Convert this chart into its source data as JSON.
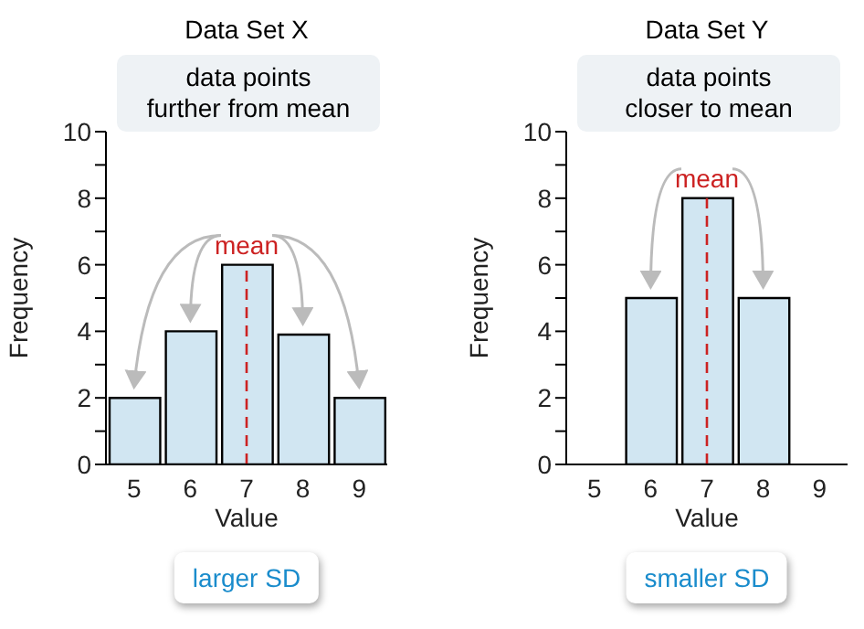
{
  "chart_data": [
    {
      "type": "histogram",
      "title": "Data Set X",
      "xlabel": "Value",
      "ylabel": "Frequency",
      "bins": [
        4.5,
        5.5,
        6.5,
        7.5,
        8.5,
        9.5
      ],
      "values": [
        2,
        4,
        6,
        3.9,
        2
      ],
      "color": "#d1e6f2",
      "xlim": [
        4.5,
        9.5
      ],
      "xticks": [
        5,
        6,
        7,
        8,
        9
      ],
      "ylim": [
        0,
        10
      ],
      "yticks": [
        0,
        {
          "value": 1,
          "label": null
        },
        2,
        {
          "value": 3,
          "label": null
        },
        4,
        {
          "value": 5,
          "label": null
        },
        6,
        {
          "value": 7,
          "label": null
        },
        8,
        {
          "value": 9,
          "label": null
        },
        10
      ],
      "grid": false,
      "legend": false,
      "ref_lines": [
        {
          "axis": "x",
          "value": 7,
          "label": "mean",
          "color": "#cc2222",
          "line_style": "dashed"
        }
      ],
      "annotations": [
        "data points\nfurther from mean",
        "larger SD"
      ]
    },
    {
      "type": "histogram",
      "title": "Data Set Y",
      "xlabel": "Value",
      "ylabel": "Frequency",
      "bins": [
        4.5,
        5.5,
        6.5,
        7.5,
        8.5,
        9.5
      ],
      "values": [
        0,
        5,
        8,
        5,
        0
      ],
      "color": "#d1e6f2",
      "xlim": [
        4.5,
        9.5
      ],
      "xticks": [
        5,
        6,
        7,
        8,
        9
      ],
      "ylim": [
        0,
        10
      ],
      "yticks": [
        0,
        {
          "value": 1,
          "label": null
        },
        2,
        {
          "value": 3,
          "label": null
        },
        4,
        {
          "value": 5,
          "label": null
        },
        6,
        {
          "value": 7,
          "label": null
        },
        8,
        {
          "value": 9,
          "label": null
        },
        10
      ],
      "grid": false,
      "legend": false,
      "ref_lines": [
        {
          "axis": "x",
          "value": 7,
          "label": "mean",
          "color": "#cc2222",
          "line_style": "dashed"
        }
      ],
      "annotations": [
        "data points\ncloser to mean",
        "smaller SD"
      ]
    }
  ]
}
